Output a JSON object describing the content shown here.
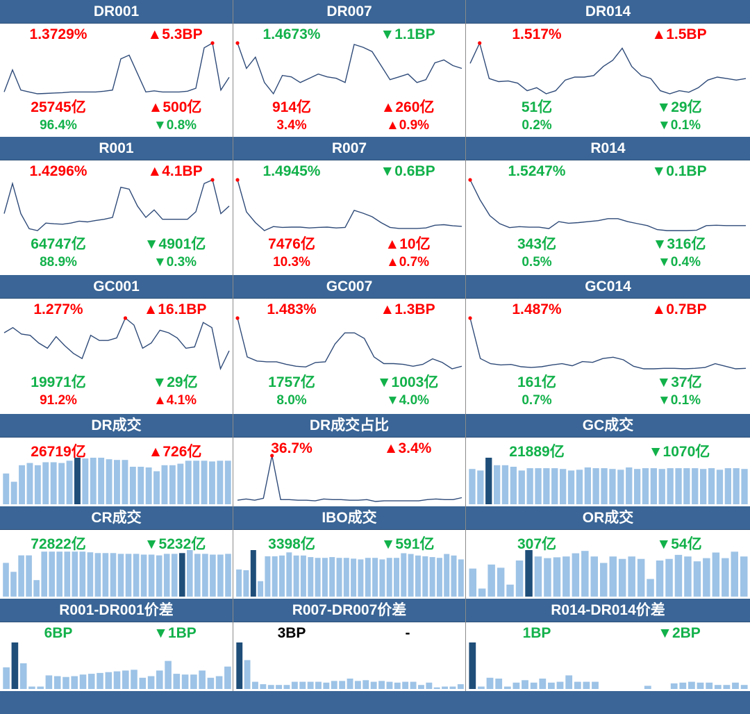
{
  "colors": {
    "header": "#3a6596",
    "up": "#ff0000",
    "down": "#12b14a",
    "line": "#2e4a78",
    "bar": "#9dc3e6",
    "bar_hl": "#1f4e79",
    "marker": "#ff0000"
  },
  "panels": [
    {
      "title": "DR001",
      "kind": "line",
      "rate": {
        "text": "1.3729%",
        "color": "red"
      },
      "rate_chg": {
        "text": "▲5.3BP",
        "color": "red"
      },
      "vol": {
        "text": "25745亿",
        "color": "red"
      },
      "vol_chg": {
        "text": "▲500亿",
        "color": "red"
      },
      "share": {
        "text": "96.4%",
        "color": "green"
      },
      "share_chg": {
        "text": "▼0.8%",
        "color": "green"
      },
      "chart_data": {
        "type": "line",
        "values": [
          1.24,
          1.3,
          1.245,
          1.24,
          1.235,
          1.236,
          1.237,
          1.238,
          1.24,
          1.24,
          1.24,
          1.24,
          1.242,
          1.245,
          1.33,
          1.34,
          1.29,
          1.24,
          1.243,
          1.24,
          1.24,
          1.24,
          1.242,
          1.25,
          1.36,
          1.3729,
          1.245,
          1.28
        ],
        "marker_index": 25
      }
    },
    {
      "title": "DR007",
      "kind": "line",
      "rate": {
        "text": "1.4673%",
        "color": "green"
      },
      "rate_chg": {
        "text": "▼1.1BP",
        "color": "green"
      },
      "vol": {
        "text": "914亿",
        "color": "red"
      },
      "vol_chg": {
        "text": "▲260亿",
        "color": "red"
      },
      "share": {
        "text": "3.4%",
        "color": "red"
      },
      "share_chg": {
        "text": "▲0.9%",
        "color": "red"
      },
      "chart_data": {
        "type": "line",
        "values": [
          1.64,
          1.55,
          1.59,
          1.5,
          1.46,
          1.525,
          1.52,
          1.5,
          1.515,
          1.53,
          1.52,
          1.515,
          1.5,
          1.635,
          1.625,
          1.61,
          1.56,
          1.51,
          1.52,
          1.53,
          1.5,
          1.51,
          1.57,
          1.58,
          1.56,
          1.55
        ],
        "marker_index": 0
      }
    },
    {
      "title": "DR014",
      "kind": "line",
      "rate": {
        "text": "1.517%",
        "color": "red"
      },
      "rate_chg": {
        "text": "▲1.5BP",
        "color": "red"
      },
      "vol": {
        "text": "51亿",
        "color": "green"
      },
      "vol_chg": {
        "text": "▼29亿",
        "color": "green"
      },
      "share": {
        "text": "0.2%",
        "color": "green"
      },
      "share_chg": {
        "text": "▼0.1%",
        "color": "green"
      },
      "chart_data": {
        "type": "line",
        "values": [
          1.45,
          1.517,
          1.4,
          1.39,
          1.392,
          1.385,
          1.36,
          1.37,
          1.35,
          1.36,
          1.395,
          1.405,
          1.405,
          1.41,
          1.44,
          1.46,
          1.5,
          1.44,
          1.41,
          1.4,
          1.36,
          1.35,
          1.36,
          1.355,
          1.37,
          1.395,
          1.405,
          1.4,
          1.395,
          1.4
        ],
        "marker_index": 1
      }
    },
    {
      "title": "R001",
      "kind": "line",
      "rate": {
        "text": "1.4296%",
        "color": "red"
      },
      "rate_chg": {
        "text": "▲4.1BP",
        "color": "red"
      },
      "vol": {
        "text": "64747亿",
        "color": "green"
      },
      "vol_chg": {
        "text": "▼4901亿",
        "color": "green"
      },
      "share": {
        "text": "88.9%",
        "color": "green"
      },
      "share_chg": {
        "text": "▼0.3%",
        "color": "green"
      },
      "chart_data": {
        "type": "line",
        "values": [
          1.34,
          1.42,
          1.34,
          1.3,
          1.295,
          1.315,
          1.313,
          1.312,
          1.315,
          1.32,
          1.318,
          1.322,
          1.325,
          1.33,
          1.41,
          1.405,
          1.36,
          1.33,
          1.35,
          1.325,
          1.325,
          1.325,
          1.325,
          1.345,
          1.42,
          1.4296,
          1.34,
          1.36
        ],
        "marker_index": 25
      }
    },
    {
      "title": "R007",
      "kind": "line",
      "rate": {
        "text": "1.4945%",
        "color": "green"
      },
      "rate_chg": {
        "text": "▼0.6BP",
        "color": "green"
      },
      "vol": {
        "text": "7476亿",
        "color": "red"
      },
      "vol_chg": {
        "text": "▲10亿",
        "color": "red"
      },
      "share": {
        "text": "10.3%",
        "color": "red"
      },
      "share_chg": {
        "text": "▲0.7%",
        "color": "red"
      },
      "chart_data": {
        "type": "line",
        "values": [
          1.75,
          1.63,
          1.59,
          1.56,
          1.575,
          1.572,
          1.573,
          1.573,
          1.57,
          1.572,
          1.573,
          1.57,
          1.572,
          1.636,
          1.625,
          1.612,
          1.59,
          1.572,
          1.568,
          1.568,
          1.568,
          1.57,
          1.58,
          1.582,
          1.578,
          1.576
        ],
        "marker_index": 0
      }
    },
    {
      "title": "R014",
      "kind": "line",
      "rate": {
        "text": "1.5247%",
        "color": "green"
      },
      "rate_chg": {
        "text": "▼0.1BP",
        "color": "green"
      },
      "vol": {
        "text": "343亿",
        "color": "green"
      },
      "vol_chg": {
        "text": "▼316亿",
        "color": "green"
      },
      "share": {
        "text": "0.5%",
        "color": "green"
      },
      "share_chg": {
        "text": "▼0.4%",
        "color": "green"
      },
      "chart_data": {
        "type": "line",
        "values": [
          1.85,
          1.75,
          1.67,
          1.63,
          1.61,
          1.615,
          1.612,
          1.612,
          1.605,
          1.64,
          1.632,
          1.635,
          1.64,
          1.645,
          1.655,
          1.655,
          1.64,
          1.63,
          1.62,
          1.6,
          1.595,
          1.595,
          1.595,
          1.597,
          1.62,
          1.622,
          1.62,
          1.62,
          1.62
        ],
        "marker_index": 0
      }
    },
    {
      "title": "GC001",
      "kind": "line",
      "rate": {
        "text": "1.277%",
        "color": "red"
      },
      "rate_chg": {
        "text": "▲16.1BP",
        "color": "red"
      },
      "vol": {
        "text": "19971亿",
        "color": "green"
      },
      "vol_chg": {
        "text": "▼29亿",
        "color": "green"
      },
      "share": {
        "text": "91.2%",
        "color": "red"
      },
      "share_chg": {
        "text": "▲4.1%",
        "color": "red"
      },
      "chart_data": {
        "type": "line",
        "values": [
          1.22,
          1.24,
          1.215,
          1.21,
          1.18,
          1.16,
          1.205,
          1.17,
          1.14,
          1.12,
          1.21,
          1.19,
          1.19,
          1.2,
          1.277,
          1.25,
          1.16,
          1.18,
          1.23,
          1.22,
          1.2,
          1.16,
          1.165,
          1.26,
          1.24,
          1.08,
          1.15
        ],
        "marker_index": 14
      }
    },
    {
      "title": "GC007",
      "kind": "line",
      "rate": {
        "text": "1.483%",
        "color": "red"
      },
      "rate_chg": {
        "text": "▲1.3BP",
        "color": "red"
      },
      "vol": {
        "text": "1757亿",
        "color": "green"
      },
      "vol_chg": {
        "text": "▼1003亿",
        "color": "green"
      },
      "share": {
        "text": "8.0%",
        "color": "green"
      },
      "share_chg": {
        "text": "▼4.0%",
        "color": "green"
      },
      "chart_data": {
        "type": "line",
        "values": [
          1.58,
          1.475,
          1.464,
          1.462,
          1.462,
          1.455,
          1.45,
          1.448,
          1.46,
          1.462,
          1.51,
          1.54,
          1.54,
          1.525,
          1.475,
          1.457,
          1.457,
          1.455,
          1.45,
          1.455,
          1.47,
          1.46,
          1.443,
          1.45
        ],
        "marker_index": 0
      }
    },
    {
      "title": "GC014",
      "kind": "line",
      "rate": {
        "text": "1.487%",
        "color": "red"
      },
      "rate_chg": {
        "text": "▲0.7BP",
        "color": "red"
      },
      "vol": {
        "text": "161亿",
        "color": "green"
      },
      "vol_chg": {
        "text": "▼37亿",
        "color": "green"
      },
      "share": {
        "text": "0.7%",
        "color": "green"
      },
      "share_chg": {
        "text": "▼0.1%",
        "color": "green"
      },
      "chart_data": {
        "type": "line",
        "values": [
          1.487,
          1.33,
          1.31,
          1.305,
          1.307,
          1.298,
          1.295,
          1.298,
          1.305,
          1.31,
          1.302,
          1.318,
          1.315,
          1.33,
          1.335,
          1.325,
          1.3,
          1.29,
          1.29,
          1.292,
          1.292,
          1.29,
          1.292,
          1.295,
          1.31,
          1.3,
          1.29,
          1.292
        ],
        "marker_index": 0
      }
    },
    {
      "title": "DR成交",
      "kind": "bar",
      "short": true,
      "rate": {
        "text": "26719亿",
        "color": "red"
      },
      "rate_chg": {
        "text": "▲726亿",
        "color": "red"
      },
      "chart_data": {
        "type": "bar",
        "values": [
          41,
          30,
          52,
          55,
          52,
          56,
          56,
          55,
          58,
          62,
          61,
          62,
          62,
          60,
          59,
          59,
          50,
          50,
          49,
          44,
          52,
          52,
          54,
          58,
          58,
          58,
          57,
          58,
          58
        ],
        "highlight_index": 9
      }
    },
    {
      "title": "DR成交占比",
      "kind": "line",
      "short": true,
      "rate": {
        "text": "36.7%",
        "color": "red"
      },
      "rate_chg": {
        "text": "▲3.4%",
        "color": "red"
      },
      "chart_data": {
        "type": "line",
        "values": [
          1.5,
          2.5,
          1.5,
          3,
          36.7,
          2,
          2,
          1.5,
          1.5,
          1,
          2.5,
          2,
          2,
          1.5,
          1.5,
          2,
          0.5,
          1,
          1,
          1,
          1,
          1,
          2,
          2.5,
          2,
          2,
          3.5
        ],
        "marker_index": 4
      }
    },
    {
      "title": "GC成交",
      "kind": "bar",
      "short": true,
      "rate": {
        "text": "21889亿",
        "color": "green"
      },
      "rate_chg": {
        "text": "▼1070亿",
        "color": "green"
      },
      "chart_data": {
        "type": "bar",
        "values": [
          47,
          45,
          62,
          52,
          52,
          50,
          45,
          48,
          48,
          48,
          48,
          47,
          45,
          46,
          49,
          48,
          48,
          47,
          46,
          49,
          47,
          48,
          48,
          47,
          48,
          48,
          48,
          48,
          47,
          48,
          46,
          48,
          48,
          47
        ],
        "highlight_index": 2
      }
    },
    {
      "title": "CR成交",
      "kind": "bar",
      "short": true,
      "rate": {
        "text": "72822亿",
        "color": "green"
      },
      "rate_chg": {
        "text": "▼5232亿",
        "color": "green"
      },
      "chart_data": {
        "type": "bar",
        "values": [
          45,
          33,
          55,
          55,
          22,
          60,
          60,
          60,
          60,
          60,
          60,
          59,
          58,
          58,
          58,
          57,
          57,
          57,
          56,
          56,
          55,
          57,
          57,
          58,
          62,
          57,
          57,
          56,
          56,
          57
        ],
        "highlight_index": 23
      }
    },
    {
      "title": "IBO成交",
      "kind": "bar",
      "short": true,
      "rate": {
        "text": "3398亿",
        "color": "green"
      },
      "rate_chg": {
        "text": "▼591亿",
        "color": "green"
      },
      "chart_data": {
        "type": "bar",
        "values": [
          35,
          34,
          60,
          20,
          52,
          52,
          53,
          57,
          53,
          53,
          51,
          50,
          50,
          51,
          50,
          50,
          49,
          48,
          50,
          50,
          48,
          50,
          50,
          56,
          55,
          53,
          52,
          51,
          50,
          55,
          53,
          48
        ],
        "highlight_index": 2
      }
    },
    {
      "title": "OR成交",
      "kind": "bar",
      "short": true,
      "rate": {
        "text": "307亿",
        "color": "green"
      },
      "rate_chg": {
        "text": "▼54亿",
        "color": "green"
      },
      "chart_data": {
        "type": "bar",
        "values": [
          35,
          10,
          40,
          36,
          15,
          45,
          58,
          50,
          48,
          49,
          50,
          54,
          57,
          50,
          42,
          50,
          47,
          50,
          47,
          22,
          45,
          47,
          52,
          50,
          44,
          48,
          55,
          48,
          56,
          50
        ],
        "highlight_index": 6
      }
    },
    {
      "title": "R001-DR001价差",
      "kind": "bar",
      "short": true,
      "rate": {
        "text": "6BP",
        "color": "green"
      },
      "rate_chg": {
        "text": "▼1BP",
        "color": "green"
      },
      "chart_data": {
        "type": "bar",
        "values": [
          27,
          58,
          32,
          3,
          3,
          17,
          16,
          15,
          16,
          18,
          19,
          20,
          21,
          22,
          23,
          24,
          14,
          16,
          23,
          35,
          19,
          18,
          18,
          23,
          14,
          16,
          28
        ],
        "highlight_index": 1
      }
    },
    {
      "title": "R007-DR007价差",
      "kind": "bar",
      "short": true,
      "rate": {
        "text": "3BP",
        "color": "black"
      },
      "rate_chg": {
        "text": "-",
        "color": "black"
      },
      "chart_data": {
        "type": "bar",
        "values": [
          58,
          36,
          9,
          6,
          5,
          5,
          5,
          9,
          9,
          9,
          9,
          8,
          10,
          10,
          13,
          10,
          11,
          9,
          10,
          9,
          8,
          9,
          9,
          5,
          8,
          2,
          3,
          3,
          6
        ],
        "highlight_index": 0
      }
    },
    {
      "title": "R014-DR014价差",
      "kind": "bar",
      "short": true,
      "rate": {
        "text": "1BP",
        "color": "green"
      },
      "rate_chg": {
        "text": "▼2BP",
        "color": "green"
      },
      "chart_data": {
        "type": "bar",
        "values": [
          58,
          3,
          14,
          13,
          3,
          8,
          11,
          8,
          13,
          8,
          9,
          17,
          9,
          9,
          9,
          0,
          0,
          0,
          0,
          0,
          4,
          0,
          0,
          7,
          8,
          9,
          8,
          8,
          5,
          5,
          8,
          5
        ],
        "highlight_index": 0
      }
    }
  ]
}
